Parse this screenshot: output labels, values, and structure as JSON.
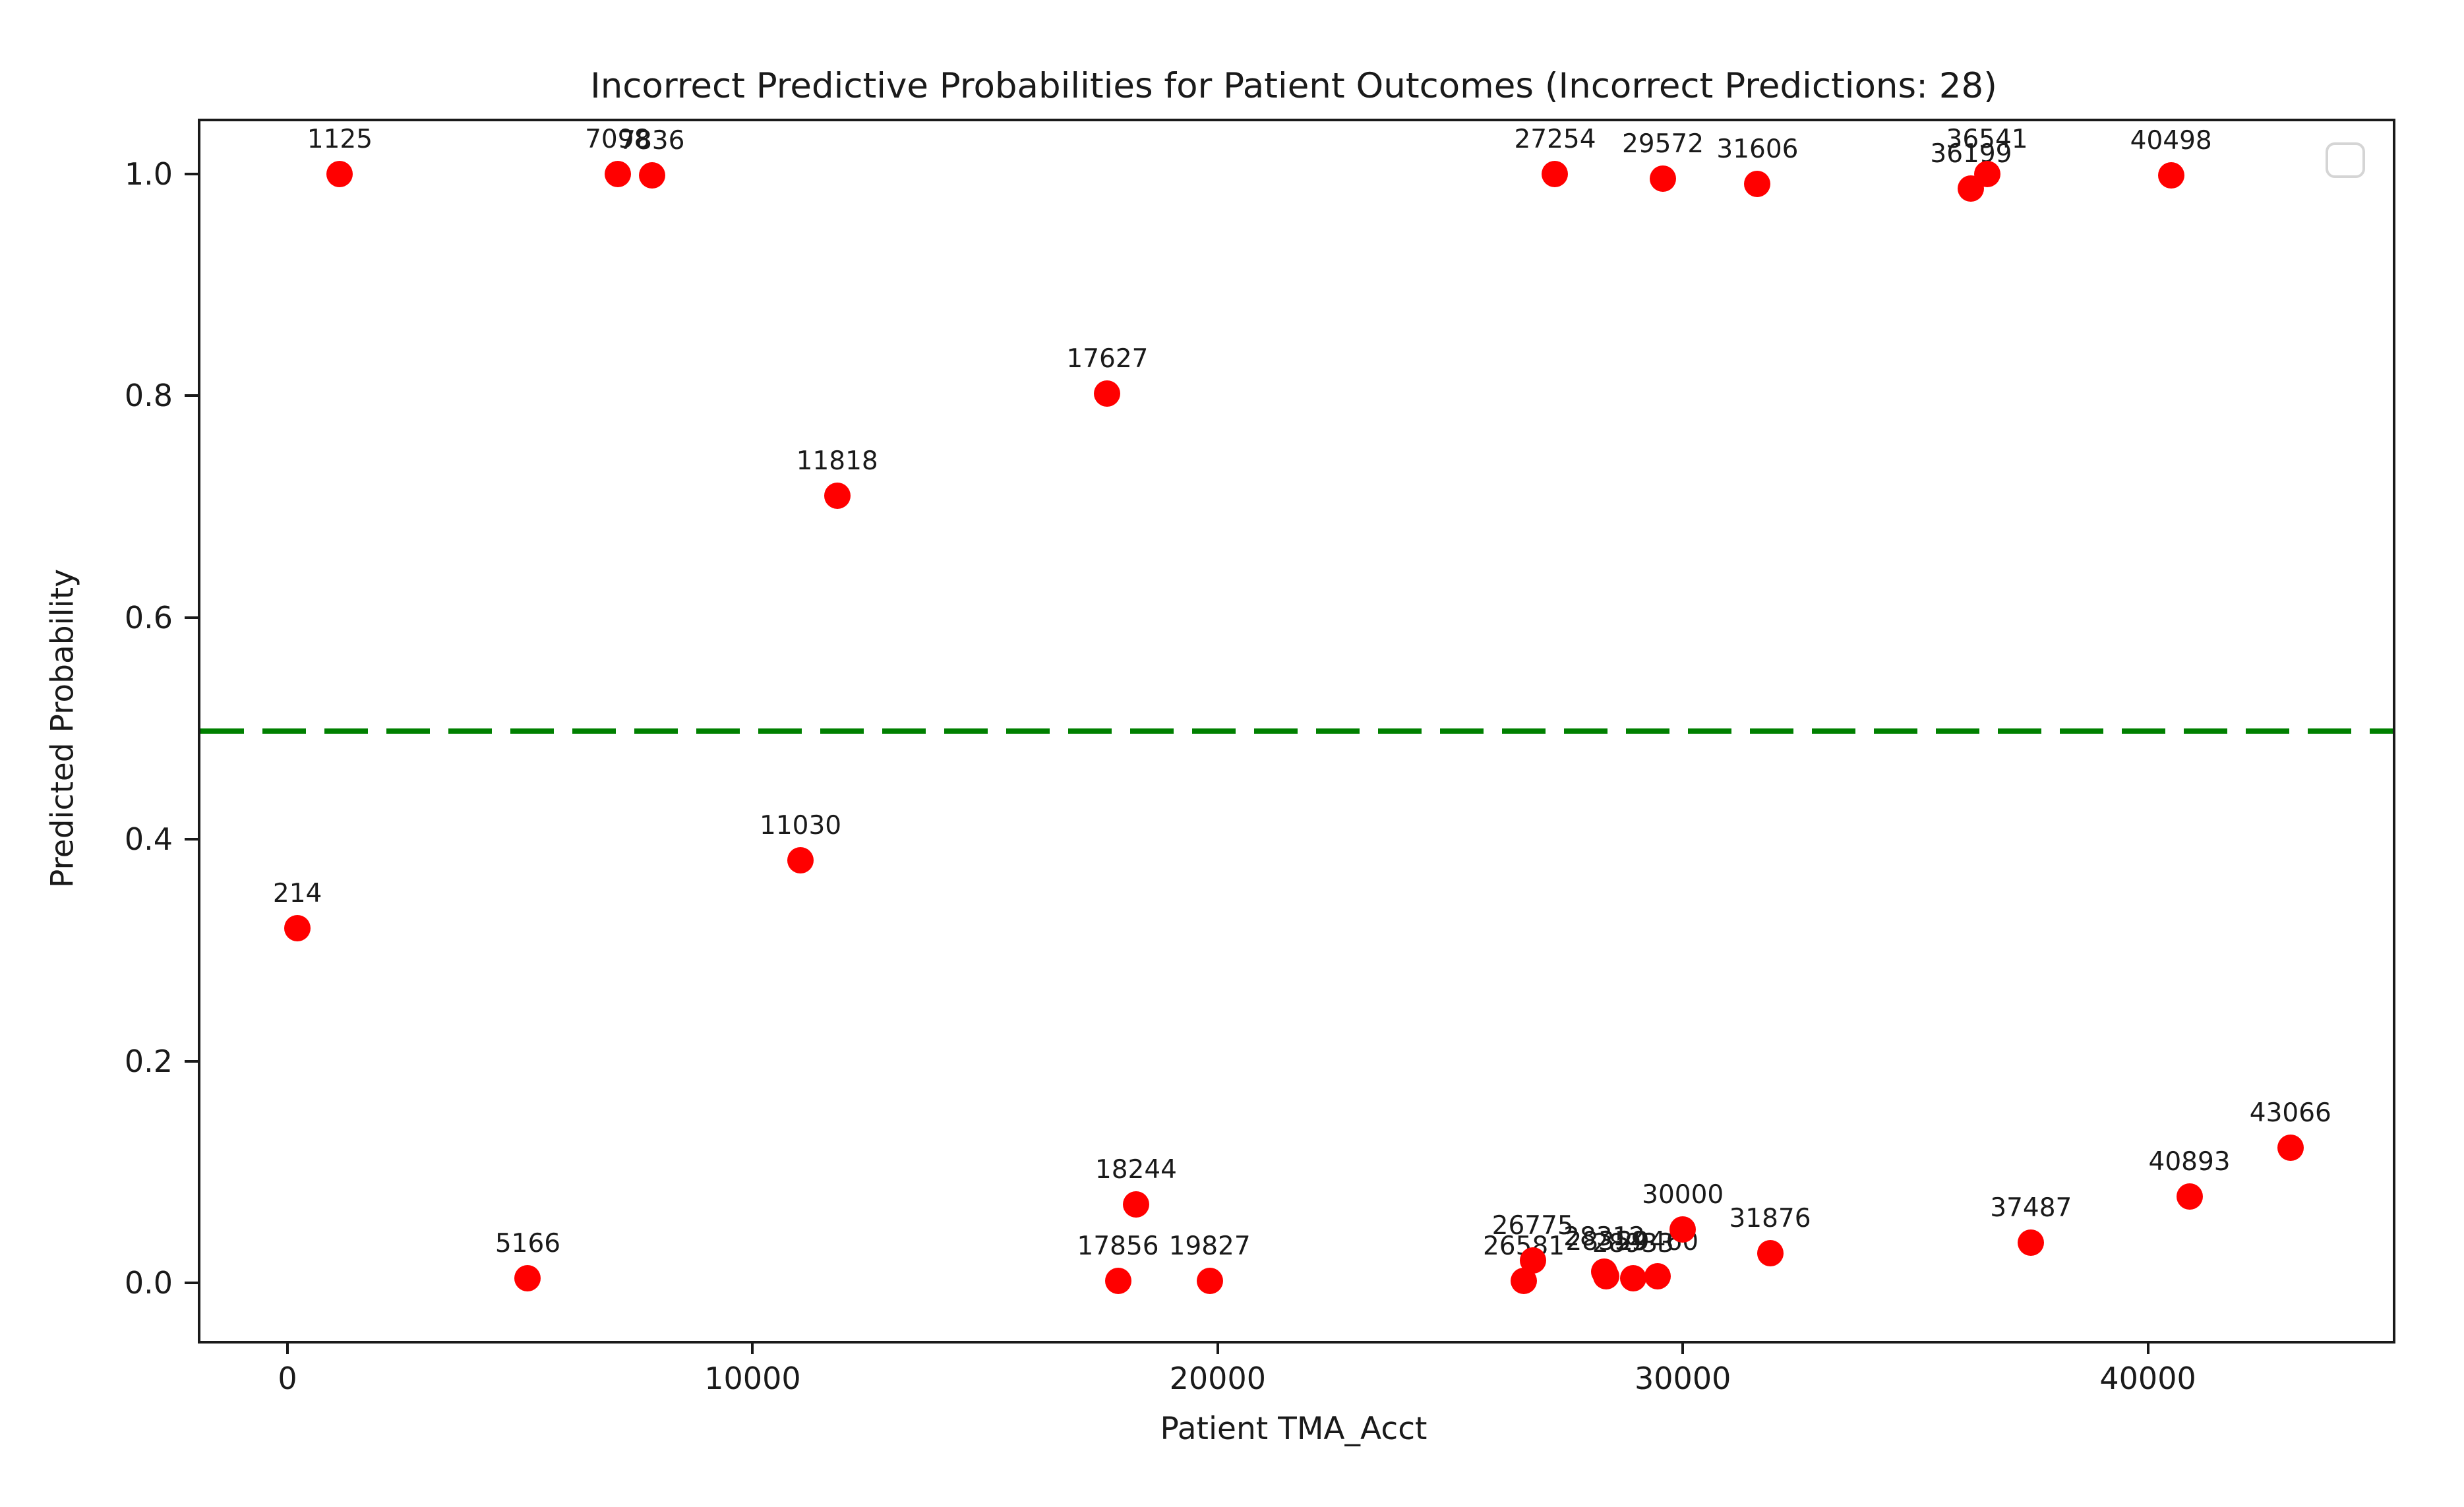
{
  "chart_data": {
    "type": "scatter",
    "title": "Incorrect Predictive Probabilities for Patient Outcomes (Incorrect Predictions: 28)",
    "xlabel": "Patient TMA_Acct",
    "ylabel": "Predicted Probability",
    "xlim": [
      -1929,
      45209
    ],
    "ylim": [
      -0.05,
      1.05
    ],
    "x_tick_labels": [
      "0",
      "10000",
      "20000",
      "30000",
      "40000"
    ],
    "y_tick_labels": [
      "0.0",
      "0.2",
      "0.4",
      "0.6",
      "0.8",
      "1.0"
    ],
    "grid": false,
    "legend": {
      "present": true,
      "entries": [],
      "position": "upper-right"
    },
    "marker_color": "#ff0000",
    "threshold_line": {
      "y": 0.5,
      "color": "#008000",
      "style": "dashed"
    },
    "points": [
      {
        "label": "1125",
        "x": 1125,
        "y": 1.0
      },
      {
        "label": "7098",
        "x": 7098,
        "y": 1.0
      },
      {
        "label": "7836",
        "x": 7836,
        "y": 0.999
      },
      {
        "label": "27254",
        "x": 27254,
        "y": 1.0
      },
      {
        "label": "29572",
        "x": 29572,
        "y": 0.996
      },
      {
        "label": "31606",
        "x": 31606,
        "y": 0.991
      },
      {
        "label": "36199",
        "x": 36199,
        "y": 0.987
      },
      {
        "label": "36541",
        "x": 36541,
        "y": 1.0
      },
      {
        "label": "40498",
        "x": 40498,
        "y": 0.999
      },
      {
        "label": "17627",
        "x": 17627,
        "y": 0.802
      },
      {
        "label": "11818",
        "x": 11818,
        "y": 0.71
      },
      {
        "label": "11030",
        "x": 11030,
        "y": 0.381
      },
      {
        "label": "214",
        "x": 214,
        "y": 0.32
      },
      {
        "label": "5166",
        "x": 5166,
        "y": 0.004
      },
      {
        "label": "17856",
        "x": 17856,
        "y": 0.002
      },
      {
        "label": "18244",
        "x": 18244,
        "y": 0.071
      },
      {
        "label": "19827",
        "x": 19827,
        "y": 0.002
      },
      {
        "label": "26581",
        "x": 26581,
        "y": 0.002
      },
      {
        "label": "26775",
        "x": 26775,
        "y": 0.02
      },
      {
        "label": "28312",
        "x": 28312,
        "y": 0.01
      },
      {
        "label": "28359",
        "x": 28359,
        "y": 0.006
      },
      {
        "label": "28933",
        "x": 28933,
        "y": 0.004
      },
      {
        "label": "29460",
        "x": 29460,
        "y": 0.006
      },
      {
        "label": "30000",
        "x": 30000,
        "y": 0.048
      },
      {
        "label": "31876",
        "x": 31876,
        "y": 0.027
      },
      {
        "label": "37487",
        "x": 37487,
        "y": 0.036
      },
      {
        "label": "40893",
        "x": 40893,
        "y": 0.078
      },
      {
        "label": "43066",
        "x": 43066,
        "y": 0.122
      }
    ]
  }
}
